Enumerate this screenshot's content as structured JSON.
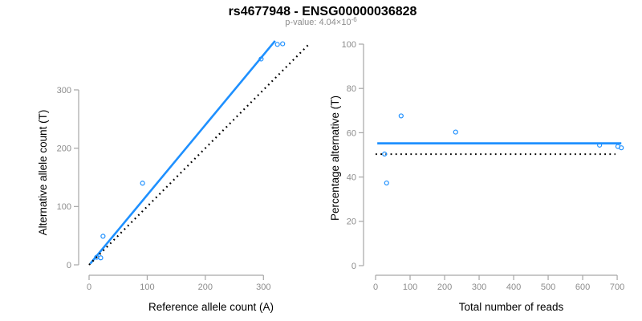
{
  "header": {
    "title": "rs4677948 - ENSG00000036828",
    "subtitle_base": "p-value: 4.04×10",
    "subtitle_exponent": "-6"
  },
  "colors": {
    "accent_blue": "#1E90FF",
    "axis_gray": "#a6a6a6",
    "tick_label_gray": "#8c8c8c",
    "text_black": "#000000"
  },
  "chart_data": [
    {
      "type": "scatter",
      "name": "allele-counts-scatter",
      "xlabel": "Reference allele count (A)",
      "ylabel": "Alternative allele count (T)",
      "xticks": [
        0,
        100,
        200,
        300
      ],
      "yticks": [
        0,
        100,
        200,
        300
      ],
      "xlim": [
        0,
        380
      ],
      "ylim": [
        0,
        385
      ],
      "grid": false,
      "point_style": {
        "shape": "open-circle",
        "color": "#1E90FF"
      },
      "points": [
        {
          "x": 13,
          "y": 13
        },
        {
          "x": 20,
          "y": 12
        },
        {
          "x": 24,
          "y": 49
        },
        {
          "x": 92,
          "y": 140
        },
        {
          "x": 296,
          "y": 353
        },
        {
          "x": 324,
          "y": 378
        },
        {
          "x": 333,
          "y": 379
        }
      ],
      "lines": [
        {
          "label": "regression-fit",
          "x1": 2,
          "y1": 2,
          "x2": 320,
          "y2": 384,
          "color": "#1E90FF",
          "dash": "solid",
          "width": 2.6
        },
        {
          "label": "identity-y-equals-x",
          "x1": 0,
          "y1": 0,
          "x2": 379,
          "y2": 379,
          "color": "#000000",
          "dash": "dotted",
          "width": 2.2
        }
      ]
    },
    {
      "type": "scatter",
      "name": "percentage-vs-reads-scatter",
      "xlabel": "Total number of reads",
      "ylabel": "Percentage alternative (T)",
      "xticks": [
        0,
        100,
        200,
        300,
        400,
        500,
        600,
        700
      ],
      "yticks": [
        0,
        20,
        40,
        60,
        80,
        100
      ],
      "xlim": [
        0,
        715
      ],
      "ylim": [
        0,
        100
      ],
      "grid": false,
      "point_style": {
        "shape": "open-circle",
        "color": "#1E90FF"
      },
      "points": [
        {
          "x": 26,
          "y": 50.4
        },
        {
          "x": 32,
          "y": 37.3
        },
        {
          "x": 74,
          "y": 67.6
        },
        {
          "x": 232,
          "y": 60.3
        },
        {
          "x": 649,
          "y": 54.4
        },
        {
          "x": 702,
          "y": 53.8
        },
        {
          "x": 712,
          "y": 53.2
        }
      ],
      "lines": [
        {
          "label": "mean-percentage-fit",
          "x1": 5,
          "y1": 55.2,
          "x2": 712,
          "y2": 55.2,
          "color": "#1E90FF",
          "dash": "solid",
          "width": 2.8
        },
        {
          "label": "null-50-percent",
          "x1": 0,
          "y1": 50.3,
          "x2": 695,
          "y2": 50.3,
          "color": "#000000",
          "dash": "dotted",
          "width": 2.0
        }
      ]
    }
  ]
}
